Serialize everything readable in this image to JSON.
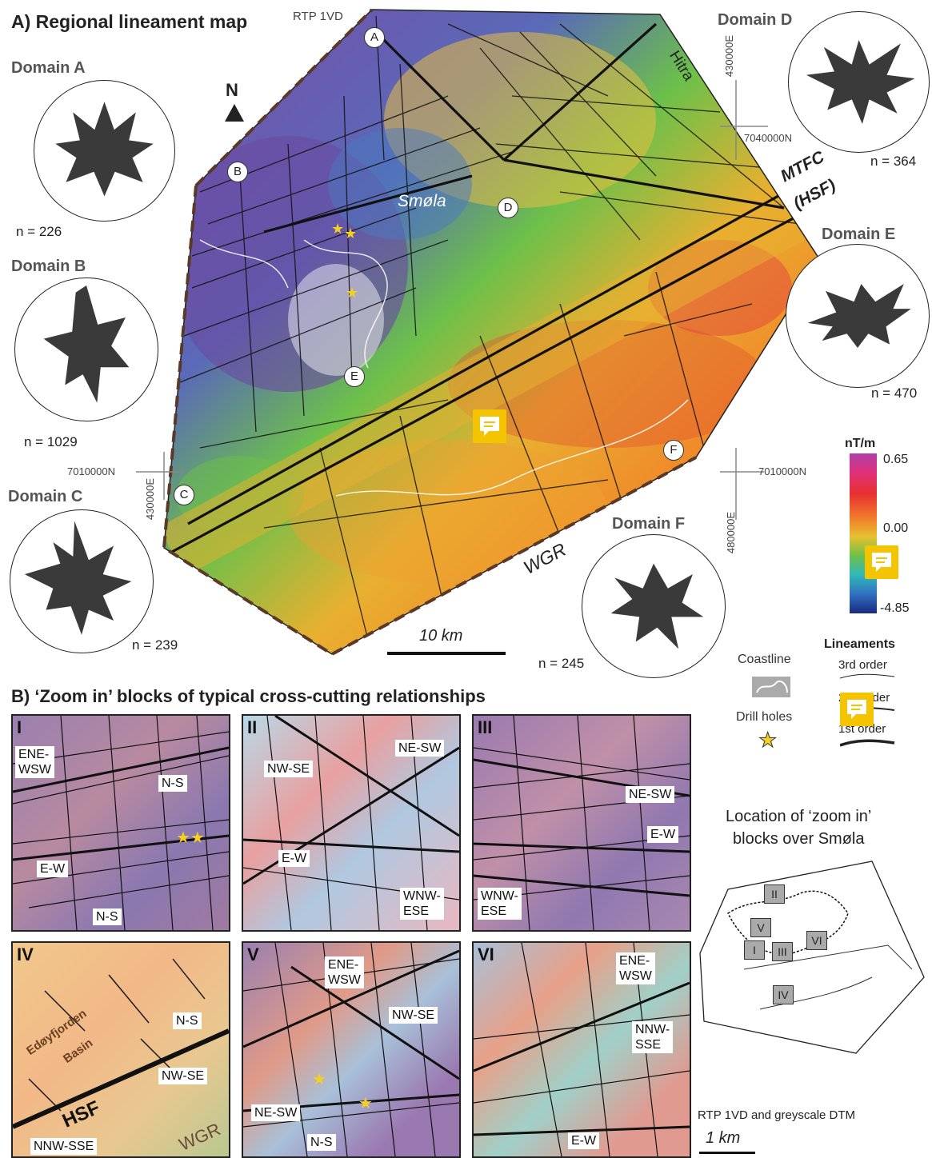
{
  "panel_a": {
    "title": "A) Regional lineament map",
    "rtp_label": "RTP 1VD",
    "place_labels": {
      "smola": "Smøla",
      "hitra": "Hitra",
      "mtfc": "MTFC",
      "hsf": "(HSF)",
      "wgr": "WGR"
    },
    "domain_markers": [
      "A",
      "B",
      "C",
      "D",
      "E",
      "F"
    ],
    "north_label": "N",
    "coords": {
      "e430_top": "430000E",
      "n7040": "7040000N",
      "n7010_left": "7010000N",
      "e430_bottom": "430000E",
      "n7010_right": "7010000N",
      "e480": "480000E"
    },
    "scale_bar": "10 km",
    "domains": [
      {
        "title": "Domain A",
        "n": "n = 226"
      },
      {
        "title": "Domain B",
        "n": "n = 1029"
      },
      {
        "title": "Domain C",
        "n": "n = 239"
      },
      {
        "title": "Domain D",
        "n": "n = 364"
      },
      {
        "title": "Domain E",
        "n": "n = 470"
      },
      {
        "title": "Domain F",
        "n": "n = 245"
      }
    ],
    "colorbar": {
      "unit": "nT/m",
      "max": "0.65",
      "mid": "0.00",
      "min": "-4.85"
    }
  },
  "legend": {
    "coastline": "Coastline",
    "drill_holes": "Drill holes",
    "lineaments_title": "Lineaments",
    "order3": "3rd order",
    "order2": "2nd order",
    "order1": "1st order"
  },
  "panel_b": {
    "title": "B) ‘Zoom in’ blocks of typical cross-cutting relationships",
    "blocks": [
      {
        "id": "I",
        "tags": [
          "ENE-\nWSW",
          "N-S",
          "E-W",
          "N-S"
        ]
      },
      {
        "id": "II",
        "tags": [
          "NW-SE",
          "NE-SW",
          "E-W",
          "WNW-\nESE"
        ]
      },
      {
        "id": "III",
        "tags": [
          "NE-SW",
          "E-W",
          "WNW-\nESE"
        ]
      },
      {
        "id": "IV",
        "tags": [
          "N-S",
          "NW-SE",
          "NNW-SSE",
          "Edøyfjorden",
          "Basin",
          "HSF",
          "WGR"
        ]
      },
      {
        "id": "V",
        "tags": [
          "ENE-\nWSW",
          "NW-SE",
          "NE-SW",
          "N-S"
        ]
      },
      {
        "id": "VI",
        "tags": [
          "ENE-\nWSW",
          "NNW-\nSSE",
          "E-W"
        ]
      }
    ],
    "location_title_1": "Location of ‘zoom in’",
    "location_title_2": "blocks over Smøla",
    "location_boxes": [
      "II",
      "V",
      "I",
      "III",
      "VI",
      "IV"
    ],
    "rtp_dtm": "RTP 1VD and greyscale DTM",
    "scale_bar": "1 km"
  },
  "colors": {
    "high": "#a03aa0",
    "red": "#e0303a",
    "orange": "#f08a2a",
    "yellow": "#e8d030",
    "green": "#6cc04a",
    "cyan": "#30b8c8",
    "blue": "#1a3a9a",
    "comment": "#f5c400"
  }
}
